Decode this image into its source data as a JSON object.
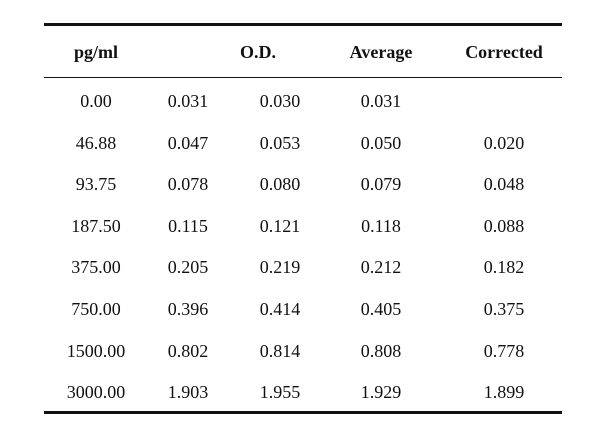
{
  "table": {
    "headers": {
      "conc": "pg/ml",
      "od": "O.D.",
      "average": "Average",
      "corrected": "Corrected"
    },
    "rows": [
      {
        "conc": "0.00",
        "od1": "0.031",
        "od2": "0.030",
        "average": "0.031",
        "corrected": ""
      },
      {
        "conc": "46.88",
        "od1": "0.047",
        "od2": "0.053",
        "average": "0.050",
        "corrected": "0.020"
      },
      {
        "conc": "93.75",
        "od1": "0.078",
        "od2": "0.080",
        "average": "0.079",
        "corrected": "0.048"
      },
      {
        "conc": "187.50",
        "od1": "0.115",
        "od2": "0.121",
        "average": "0.118",
        "corrected": "0.088"
      },
      {
        "conc": "375.00",
        "od1": "0.205",
        "od2": "0.219",
        "average": "0.212",
        "corrected": "0.182"
      },
      {
        "conc": "750.00",
        "od1": "0.396",
        "od2": "0.414",
        "average": "0.405",
        "corrected": "0.375"
      },
      {
        "conc": "1500.00",
        "od1": "0.802",
        "od2": "0.814",
        "average": "0.808",
        "corrected": "0.778"
      },
      {
        "conc": "3000.00",
        "od1": "1.903",
        "od2": "1.955",
        "average": "1.929",
        "corrected": "1.899"
      }
    ]
  }
}
